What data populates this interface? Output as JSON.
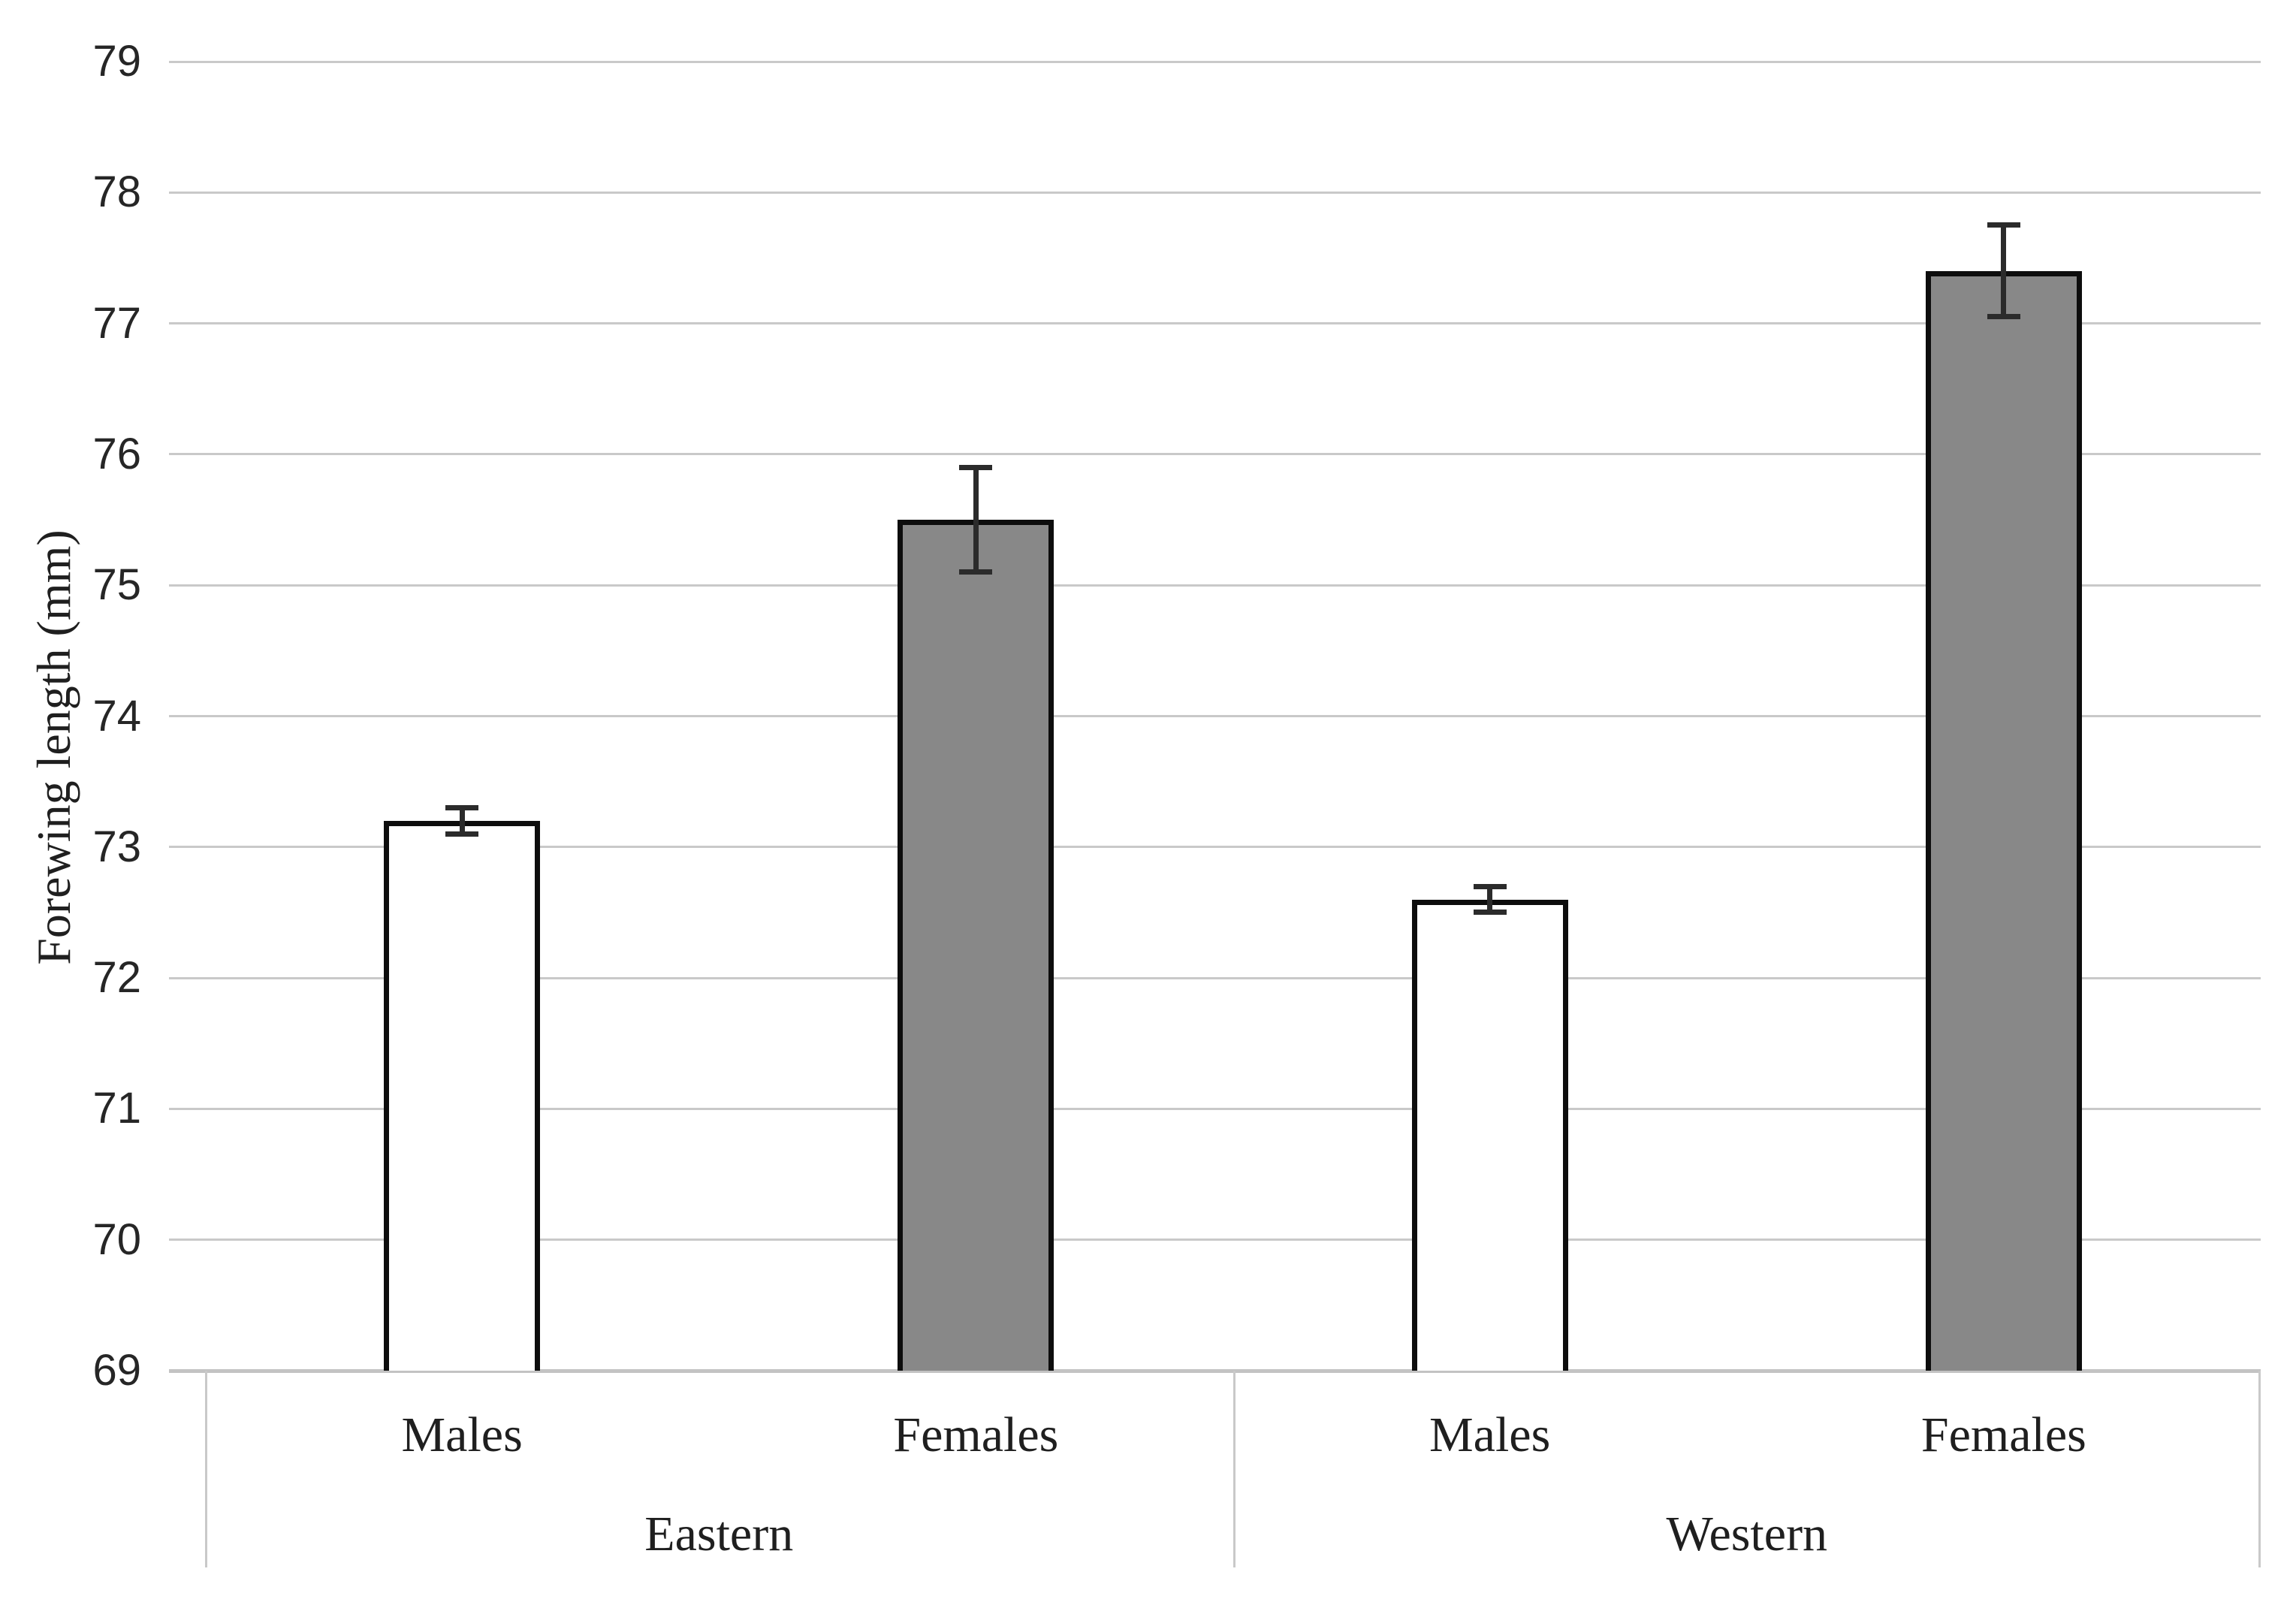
{
  "page": {
    "background": "#ffffff"
  },
  "chart_data": {
    "type": "bar",
    "title": "",
    "xlabel": "",
    "ylabel": "Forewing length (mm)",
    "ylim": [
      69,
      79
    ],
    "ytick_interval": 1,
    "yticks": [
      69,
      70,
      71,
      72,
      73,
      74,
      75,
      76,
      77,
      78,
      79
    ],
    "grid": "horizontal",
    "legend_position": "none",
    "group_labels": [
      "Eastern",
      "Western"
    ],
    "categories": [
      "Males",
      "Females",
      "Males",
      "Females"
    ],
    "bars": [
      {
        "group": "Eastern",
        "label": "Males",
        "value": 73.2,
        "error_low": 73.1,
        "error_high": 73.3,
        "fill": "#ffffff"
      },
      {
        "group": "Eastern",
        "label": "Females",
        "value": 75.5,
        "error_low": 75.1,
        "error_high": 75.9,
        "fill": "#888888"
      },
      {
        "group": "Western",
        "label": "Males",
        "value": 72.6,
        "error_low": 72.5,
        "error_high": 72.7,
        "fill": "#ffffff"
      },
      {
        "group": "Western",
        "label": "Females",
        "value": 77.4,
        "error_low": 77.05,
        "error_high": 77.75,
        "fill": "#888888"
      }
    ],
    "colors": {
      "males_fill": "#ffffff",
      "females_fill": "#888888",
      "bar_border": "#0d0d0d",
      "error_bar": "#2b2b2b",
      "gridline": "#c9c9c9",
      "axis_line": "#c3c3c3",
      "tick_text": "#262626",
      "label_text": "#1f1f1f",
      "background": "#ffffff"
    }
  }
}
